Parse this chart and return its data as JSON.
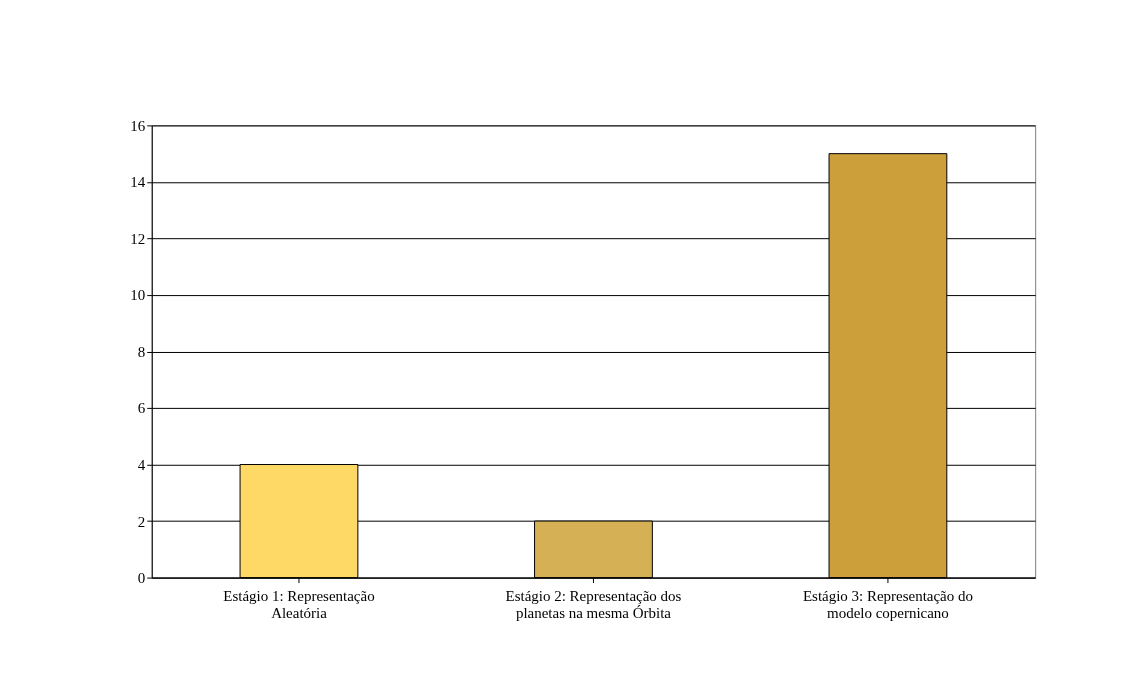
{
  "chart_data": {
    "type": "bar",
    "categories": [
      "Estágio 1: Representação\nAleatória",
      "Estágio 2: Representação dos\nplanetas na mesma Órbita",
      "Estágio 3: Representação do\nmodelo copernicano"
    ],
    "values": [
      4,
      2,
      15
    ],
    "colors": [
      "#ffd966",
      "#d6b055",
      "#cc9f3a"
    ],
    "ylim": [
      0,
      16
    ],
    "yticks": [
      0,
      2,
      4,
      6,
      8,
      10,
      12,
      14,
      16
    ],
    "grid": "y"
  }
}
